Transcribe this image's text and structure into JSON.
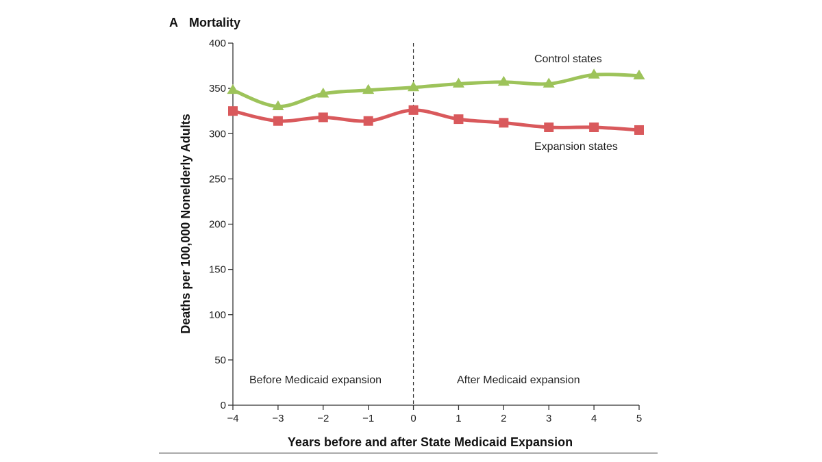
{
  "panel": {
    "letter": "A",
    "title": "Mortality"
  },
  "chart_data": {
    "type": "line",
    "title": "Mortality",
    "xlabel": "Years before and after State Medicaid Expansion",
    "ylabel": "Deaths per 100,000 Nonelderly Adults",
    "x": [
      -4,
      -3,
      -2,
      -1,
      0,
      1,
      2,
      3,
      4,
      5
    ],
    "x_tick_labels": [
      "−4",
      "−3",
      "−2",
      "−1",
      "0",
      "1",
      "2",
      "3",
      "4",
      "5"
    ],
    "xlim": [
      -4,
      5
    ],
    "ylim": [
      0,
      400
    ],
    "y_ticks": [
      0,
      50,
      100,
      150,
      200,
      250,
      300,
      350,
      400
    ],
    "grid": false,
    "series": [
      {
        "name": "Control states",
        "color": "#9dc35a",
        "marker": "triangle",
        "values": [
          348,
          330,
          344,
          348,
          351,
          355,
          357,
          355,
          365,
          364
        ]
      },
      {
        "name": "Expansion states",
        "color": "#d9595c",
        "marker": "square",
        "values": [
          325,
          314,
          318,
          314,
          326,
          316,
          312,
          307,
          307,
          304
        ]
      }
    ],
    "reference_line": {
      "x": 0,
      "style": "dashed"
    },
    "annotations": [
      "Before Medicaid expansion",
      "After Medicaid expansion"
    ]
  }
}
